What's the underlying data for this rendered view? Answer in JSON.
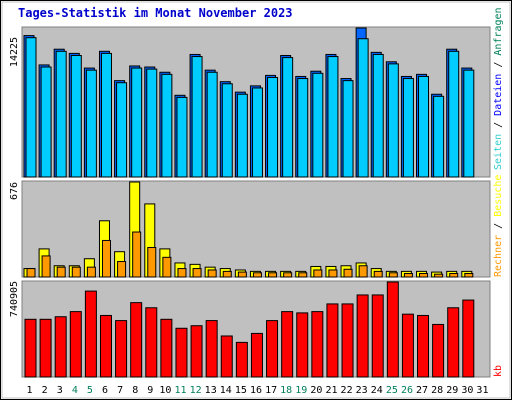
{
  "title": "Tages-Statistik im Monat November 2023",
  "colors": {
    "background": "#c0c0c0",
    "anfragen": "#00ccff",
    "dateien": "#0066ff",
    "seiten": "#33cccc",
    "besuche": "#ffff00",
    "rechner": "#ff9900",
    "kb": "#ff0000",
    "weekend_label": "#00805a",
    "weekday_label": "#000000",
    "legend_slash": "#000000"
  },
  "chart_data": [
    {
      "type": "bar",
      "panel": "top",
      "max_label": "14225",
      "ylim": [
        0,
        14225
      ],
      "legend": [
        {
          "name": "Anfragen",
          "color": "#00805a"
        },
        {
          "name": "Dateien",
          "color": "#0000ff"
        },
        {
          "name": "Seiten",
          "color": "#33cccc"
        }
      ],
      "categories": [
        "1",
        "2",
        "3",
        "4",
        "5",
        "6",
        "7",
        "8",
        "9",
        "10",
        "11",
        "12",
        "13",
        "14",
        "15",
        "16",
        "17",
        "18",
        "19",
        "20",
        "21",
        "22",
        "23",
        "24",
        "25",
        "26",
        "27",
        "28",
        "29",
        "30",
        "31"
      ],
      "weekend": [
        4,
        5,
        11,
        12,
        18,
        19,
        25,
        26
      ],
      "series": [
        {
          "name": "Anfragen",
          "values": [
            13500,
            10700,
            12200,
            11800,
            10400,
            12000,
            9200,
            10600,
            10500,
            10000,
            7800,
            11700,
            10200,
            9100,
            8100,
            8700,
            9700,
            11600,
            9600,
            10100,
            11700,
            9400,
            14000,
            11900,
            11000,
            9600,
            9800,
            7900,
            12200,
            10400,
            0
          ]
        },
        {
          "name": "Dateien",
          "values": [
            13500,
            10700,
            12200,
            11800,
            10400,
            12000,
            9200,
            10600,
            10500,
            10000,
            7800,
            11700,
            10200,
            9100,
            8100,
            8700,
            9700,
            11600,
            9600,
            10100,
            11700,
            9400,
            14225,
            11900,
            11000,
            9600,
            9800,
            7900,
            12200,
            10400,
            0
          ]
        },
        {
          "name": "Seiten",
          "values": [
            13300,
            10500,
            12000,
            11600,
            10200,
            11800,
            9000,
            10400,
            10300,
            9800,
            7600,
            11500,
            10000,
            8900,
            7900,
            8500,
            9500,
            11400,
            9400,
            9900,
            11500,
            9200,
            13200,
            11700,
            10800,
            9400,
            9600,
            7700,
            12000,
            10200,
            0
          ]
        }
      ]
    },
    {
      "type": "bar",
      "panel": "middle",
      "max_label": "676",
      "ylim": [
        0,
        676
      ],
      "legend": [
        {
          "name": "Rechner",
          "color": "#ff9900"
        },
        {
          "name": "Besuche",
          "color": "#ffff00"
        }
      ],
      "series": [
        {
          "name": "Besuche",
          "values": [
            60,
            200,
            80,
            80,
            130,
            400,
            180,
            676,
            520,
            200,
            100,
            90,
            70,
            60,
            50,
            40,
            40,
            40,
            40,
            75,
            75,
            80,
            100,
            60,
            40,
            40,
            40,
            35,
            40,
            40,
            0
          ]
        },
        {
          "name": "Rechner",
          "values": [
            60,
            150,
            70,
            70,
            70,
            260,
            110,
            320,
            210,
            140,
            60,
            60,
            50,
            40,
            35,
            30,
            30,
            30,
            30,
            50,
            50,
            55,
            80,
            40,
            30,
            25,
            25,
            20,
            25,
            25,
            0
          ]
        }
      ]
    },
    {
      "type": "bar",
      "panel": "bottom",
      "max_label": "740905",
      "ylim": [
        0,
        740905
      ],
      "legend": [
        {
          "name": "kb",
          "color": "#ff0000"
        }
      ],
      "series": [
        {
          "name": "kb",
          "values": [
            450000,
            450000,
            470000,
            510000,
            670000,
            480000,
            440000,
            580000,
            540000,
            450000,
            380000,
            400000,
            440000,
            320000,
            270000,
            340000,
            440000,
            510000,
            500000,
            510000,
            570000,
            570000,
            640000,
            640000,
            740905,
            490000,
            480000,
            410000,
            540000,
            600000,
            0
          ]
        }
      ]
    }
  ]
}
